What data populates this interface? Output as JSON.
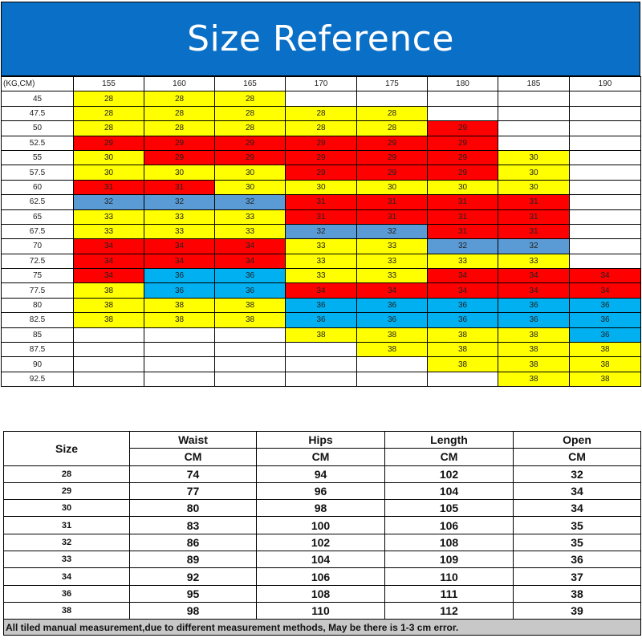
{
  "title": "Size Reference",
  "colors": {
    "banner": "#0a6fc6",
    "28": "#ffff00",
    "30": "#ffff00",
    "33": "#ffff00",
    "38": "#ffff00",
    "29": "#ff0000",
    "31": "#ff0000",
    "34": "#ff0000",
    "32": "#5b9bd5",
    "36": "#00b0f0",
    "empty": "#ffffff"
  },
  "chart": {
    "corner": "(KG,CM)",
    "heights": [
      "155",
      "160",
      "165",
      "170",
      "175",
      "180",
      "185",
      "190"
    ],
    "rows": [
      {
        "weight": "45",
        "sizes": [
          "28",
          "28",
          "28",
          "",
          "",
          "",
          "",
          ""
        ]
      },
      {
        "weight": "47.5",
        "sizes": [
          "28",
          "28",
          "28",
          "28",
          "28",
          "",
          "",
          ""
        ]
      },
      {
        "weight": "50",
        "sizes": [
          "28",
          "28",
          "28",
          "28",
          "28",
          "29",
          "",
          ""
        ]
      },
      {
        "weight": "52.5",
        "sizes": [
          "29",
          "29",
          "29",
          "29",
          "29",
          "29",
          "",
          ""
        ]
      },
      {
        "weight": "55",
        "sizes": [
          "30",
          "29",
          "29",
          "29",
          "29",
          "29",
          "30",
          ""
        ]
      },
      {
        "weight": "57.5",
        "sizes": [
          "30",
          "30",
          "30",
          "29",
          "29",
          "29",
          "30",
          ""
        ]
      },
      {
        "weight": "60",
        "sizes": [
          "31",
          "31",
          "30",
          "30",
          "30",
          "30",
          "30",
          ""
        ]
      },
      {
        "weight": "62.5",
        "sizes": [
          "32",
          "32",
          "32",
          "31",
          "31",
          "31",
          "31",
          ""
        ]
      },
      {
        "weight": "65",
        "sizes": [
          "33",
          "33",
          "33",
          "31",
          "31",
          "31",
          "31",
          ""
        ]
      },
      {
        "weight": "67.5",
        "sizes": [
          "33",
          "33",
          "33",
          "32",
          "32",
          "31",
          "31",
          ""
        ]
      },
      {
        "weight": "70",
        "sizes": [
          "34",
          "34",
          "34",
          "33",
          "33",
          "32",
          "32",
          ""
        ]
      },
      {
        "weight": "72.5",
        "sizes": [
          "34",
          "34",
          "34",
          "33",
          "33",
          "33",
          "33",
          ""
        ]
      },
      {
        "weight": "75",
        "sizes": [
          "34",
          "36",
          "36",
          "33",
          "33",
          "34",
          "34",
          "34"
        ]
      },
      {
        "weight": "77.5",
        "sizes": [
          "38",
          "36",
          "36",
          "34",
          "34",
          "34",
          "34",
          "34"
        ]
      },
      {
        "weight": "80",
        "sizes": [
          "38",
          "38",
          "38",
          "36",
          "36",
          "36",
          "36",
          "36"
        ]
      },
      {
        "weight": "82.5",
        "sizes": [
          "38",
          "38",
          "38",
          "36",
          "36",
          "36",
          "36",
          "36"
        ]
      },
      {
        "weight": "85",
        "sizes": [
          "",
          "",
          "",
          "38",
          "38",
          "38",
          "38",
          "36"
        ]
      },
      {
        "weight": "87.5",
        "sizes": [
          "",
          "",
          "",
          "",
          "38",
          "38",
          "38",
          "38"
        ]
      },
      {
        "weight": "90",
        "sizes": [
          "",
          "",
          "",
          "",
          "",
          "38",
          "38",
          "38"
        ]
      },
      {
        "weight": "92.5",
        "sizes": [
          "",
          "",
          "",
          "",
          "",
          "",
          "38",
          "38"
        ]
      }
    ]
  },
  "measurements": {
    "size_label": "Size",
    "columns": [
      "Waist",
      "Hips",
      "Length",
      "Open"
    ],
    "unit": "CM",
    "rows": [
      {
        "size": "28",
        "values": [
          "74",
          "94",
          "102",
          "32"
        ]
      },
      {
        "size": "29",
        "values": [
          "77",
          "96",
          "104",
          "34"
        ]
      },
      {
        "size": "30",
        "values": [
          "80",
          "98",
          "105",
          "34"
        ]
      },
      {
        "size": "31",
        "values": [
          "83",
          "100",
          "106",
          "35"
        ]
      },
      {
        "size": "32",
        "values": [
          "86",
          "102",
          "108",
          "35"
        ]
      },
      {
        "size": "33",
        "values": [
          "89",
          "104",
          "109",
          "36"
        ]
      },
      {
        "size": "34",
        "values": [
          "92",
          "106",
          "110",
          "37"
        ]
      },
      {
        "size": "36",
        "values": [
          "95",
          "108",
          "111",
          "38"
        ]
      },
      {
        "size": "38",
        "values": [
          "98",
          "110",
          "112",
          "39"
        ]
      }
    ],
    "note": "All tiled manual measurement,due to different measurement methods, May be there is 1-3 cm error."
  }
}
